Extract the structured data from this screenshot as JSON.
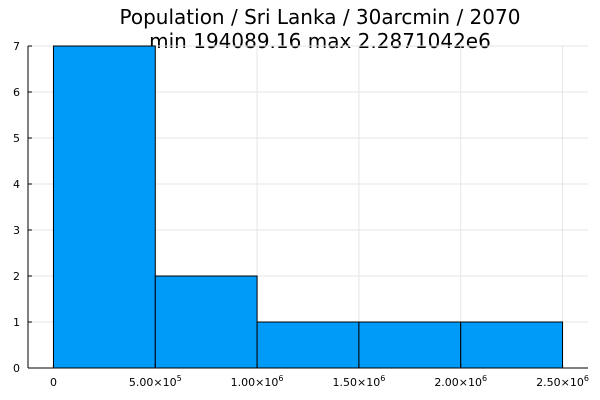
{
  "chart_data": {
    "type": "bar",
    "subtype": "histogram",
    "title_line1": "Population / Sri Lanka / 30arcmin / 2070",
    "title_line2": "min 194089.16  max 2.2871042e6",
    "xlabel": "",
    "ylabel": "",
    "bins": [
      {
        "start": 0,
        "end": 500000,
        "count": 7
      },
      {
        "start": 500000,
        "end": 1000000,
        "count": 2
      },
      {
        "start": 1000000,
        "end": 1500000,
        "count": 1
      },
      {
        "start": 1500000,
        "end": 2000000,
        "count": 1
      },
      {
        "start": 2000000,
        "end": 2500000,
        "count": 1
      }
    ],
    "xlim": [
      -125000,
      2625000
    ],
    "ylim": [
      0,
      7
    ],
    "x_ticks": [
      {
        "value": 0,
        "base": "0",
        "exp": ""
      },
      {
        "value": 500000,
        "base": "5.00×10",
        "exp": "5"
      },
      {
        "value": 1000000,
        "base": "1.00×10",
        "exp": "6"
      },
      {
        "value": 1500000,
        "base": "1.50×10",
        "exp": "6"
      },
      {
        "value": 2000000,
        "base": "2.00×10",
        "exp": "6"
      },
      {
        "value": 2500000,
        "base": "2.50×10",
        "exp": "6"
      }
    ],
    "y_ticks": [
      0,
      1,
      2,
      3,
      4,
      5,
      6,
      7
    ],
    "grid": true,
    "legend": "none",
    "bar_color": "#009af9"
  }
}
